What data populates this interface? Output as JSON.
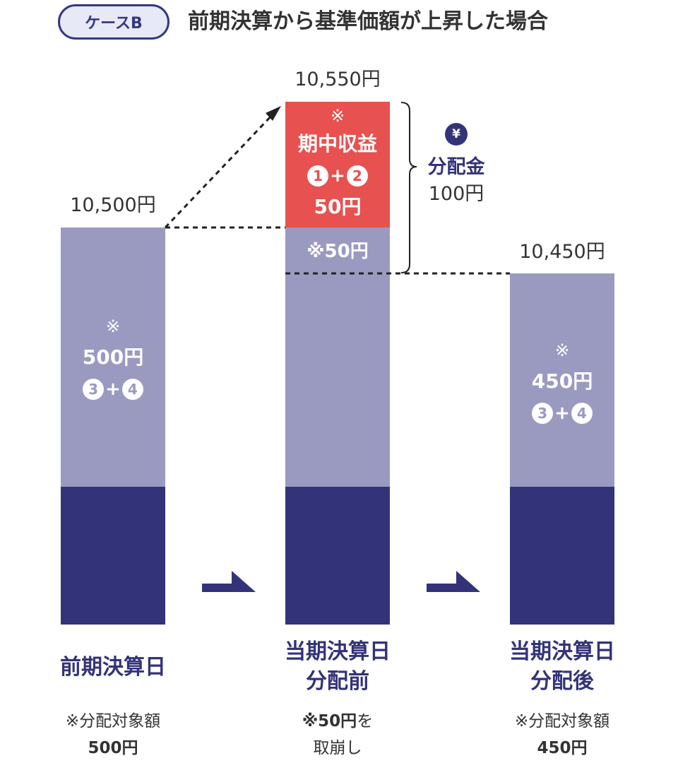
{
  "header": {
    "case_label": "ケースB",
    "title": "前期決算から基準価額が上昇した場合"
  },
  "columns": [
    {
      "top_value": "10,500円",
      "light_block": {
        "mark": "※",
        "amount": "500円",
        "circ_a": "3",
        "plus": "+",
        "circ_b": "4"
      },
      "label_line1": "前期決算日",
      "label_line2": "",
      "note_line1": "※分配対象額",
      "note_line2": "500円"
    },
    {
      "top_value": "10,550円",
      "red_block": {
        "mark": "※",
        "name": "期中収益",
        "circ_a": "1",
        "plus": "+",
        "circ_b": "2",
        "amount": "50円"
      },
      "light_block": {
        "text": "※50円"
      },
      "label_line1": "当期決算日",
      "label_line2": "分配前",
      "note_line1_bold": "※50円",
      "note_line1_rest": "を",
      "note_line2": "取崩し"
    },
    {
      "top_value": "10,450円",
      "light_block": {
        "mark": "※",
        "amount": "450円",
        "circ_a": "3",
        "plus": "+",
        "circ_b": "4"
      },
      "label_line1": "当期決算日",
      "label_line2": "分配後",
      "note_line1": "※分配対象額",
      "note_line2": "450円"
    }
  ],
  "distribution": {
    "yen_icon": "¥",
    "label": "分配金",
    "amount": "100円"
  },
  "colors": {
    "dark": "#33337a",
    "light": "#9a9ac1",
    "red": "#e75150",
    "pill_bg": "#e8e9f7"
  }
}
